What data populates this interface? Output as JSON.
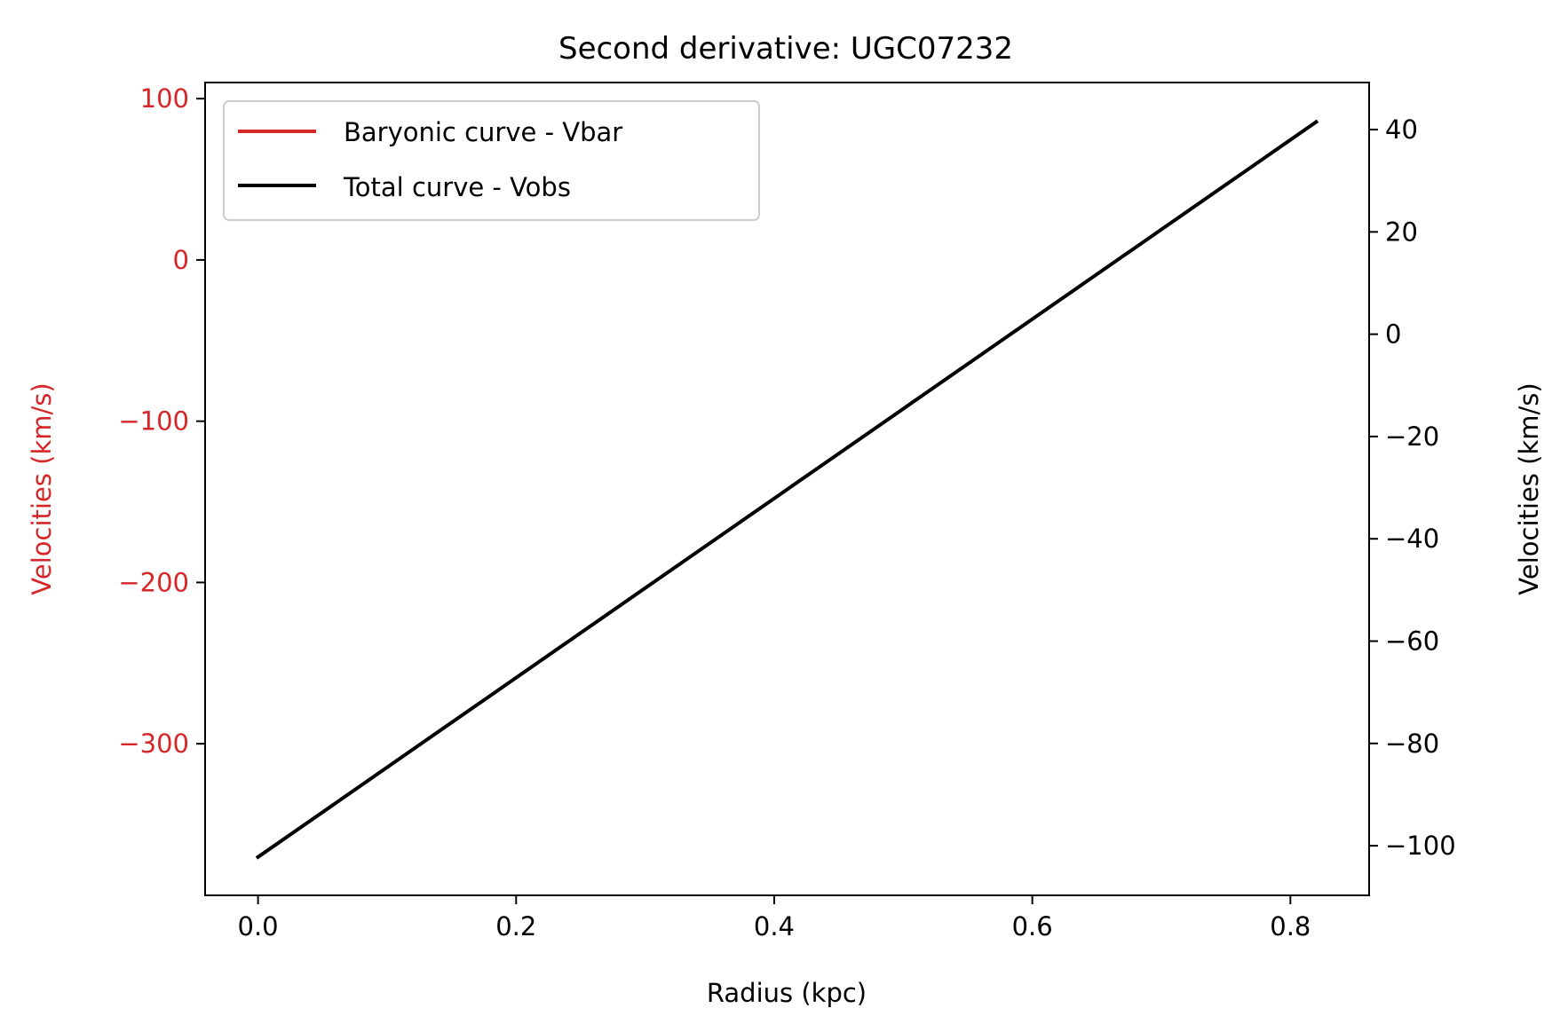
{
  "chart_data": {
    "type": "line",
    "title": "Second derivative: UGC07232",
    "xlabel": "Radius (kpc)",
    "ylabel_left": "Velocities (km/s)",
    "ylabel_right": "Velocities (km/s)",
    "xlim": [
      -0.041,
      0.861
    ],
    "ylim_left": [
      -394,
      110
    ],
    "ylim_right": [
      -109.7,
      49.2
    ],
    "xticks": [
      0.0,
      0.2,
      0.4,
      0.6,
      0.8
    ],
    "xtick_labels": [
      "0.0",
      "0.2",
      "0.4",
      "0.6",
      "0.8"
    ],
    "yticks_left": [
      100,
      0,
      -100,
      -200,
      -300
    ],
    "ytick_labels_left": [
      "100",
      "0",
      "−100",
      "−200",
      "−300"
    ],
    "yticks_right": [
      40,
      20,
      0,
      -20,
      -40,
      -60,
      -80,
      -100
    ],
    "ytick_labels_right": [
      "40",
      "20",
      "0",
      "−20",
      "−40",
      "−60",
      "−80",
      "−100"
    ],
    "left_axis_color": "#d62728",
    "right_axis_color": "#000000",
    "legend_position": "top-left",
    "series": [
      {
        "name": "Baryonic curve - Vbar",
        "axis": "left",
        "color": "#d62728",
        "x": [],
        "y": []
      },
      {
        "name": "Total curve - Vobs",
        "axis": "right",
        "color": "#000000",
        "x": [
          0.0,
          0.82
        ],
        "y": [
          -102.2,
          41.5
        ]
      }
    ]
  }
}
